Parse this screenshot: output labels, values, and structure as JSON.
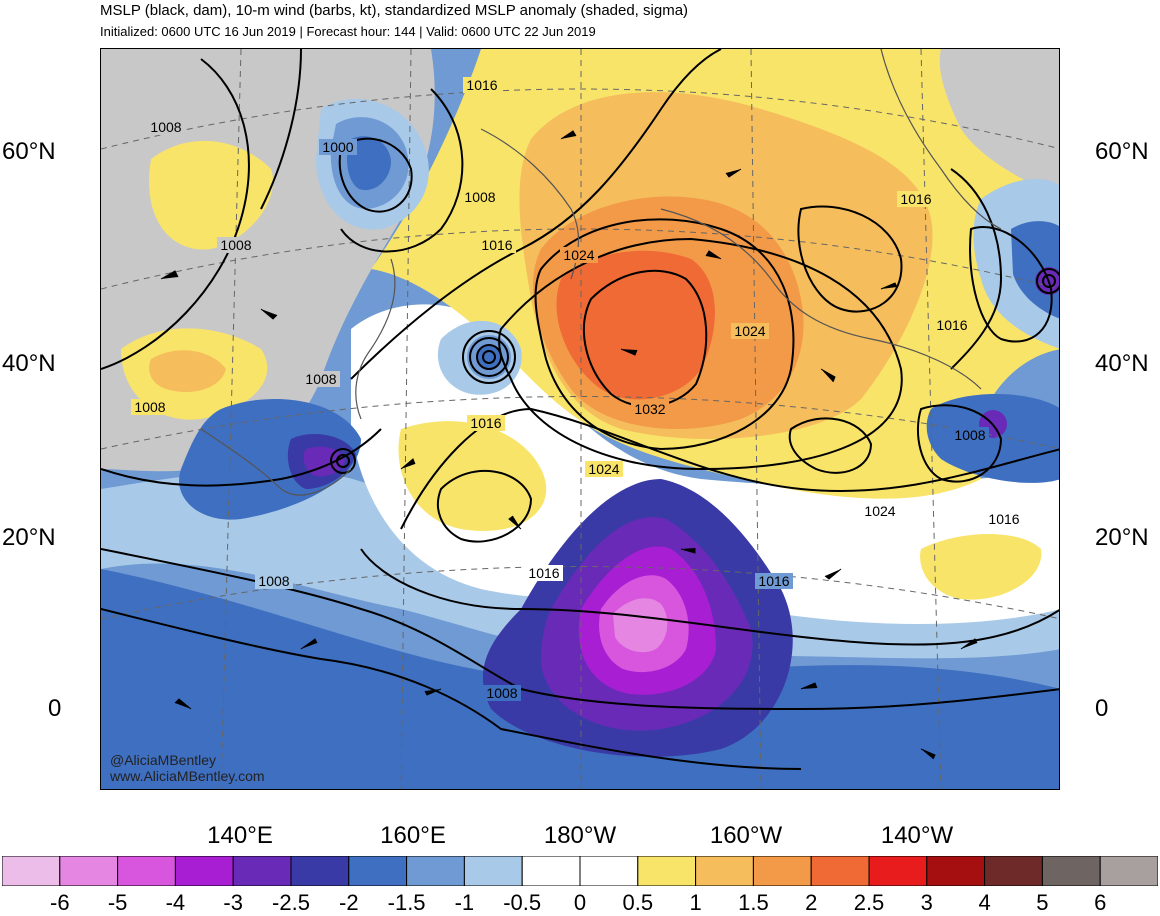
{
  "header": {
    "title": "MSLP (black, dam), 10-m wind (barbs, kt), standardized MSLP anomaly (shaded, sigma)",
    "subtitle": "Initialized: 0600 UTC 16 Jun 2019 | Forecast hour: 144 | Valid: 0600 UTC 22 Jun 2019"
  },
  "axes": {
    "lat_labels": [
      "60°N",
      "40°N",
      "20°N",
      "0"
    ],
    "lon_labels": [
      "140°E",
      "160°E",
      "180°W",
      "160°W",
      "140°W"
    ]
  },
  "isobar_labels": [
    "1016",
    "1008",
    "1000",
    "1008",
    "1016",
    "1024",
    "1032",
    "1024",
    "1016",
    "1008",
    "1008",
    "1016",
    "1008",
    "1016",
    "1024",
    "1016",
    "1016",
    "1008",
    "1024",
    "1016"
  ],
  "credit": {
    "line1": "@AliciaMBentley",
    "line2": "www.AliciaMBentley.com"
  },
  "colorbar": {
    "labels": [
      "-6",
      "-5",
      "-4",
      "-3",
      "-2.5",
      "-2",
      "-1.5",
      "-1",
      "-0.5",
      "0",
      "0.5",
      "1",
      "1.5",
      "2",
      "2.5",
      "3",
      "4",
      "5",
      "6"
    ],
    "colors": [
      "#ebbde8",
      "#e486e2",
      "#d855dd",
      "#a81ed3",
      "#6a2ab8",
      "#3a3aa6",
      "#3f6fc0",
      "#6f9ad3",
      "#a8c9e8",
      "#ffffff",
      "#ffffff",
      "#f9e46a",
      "#f5bd5c",
      "#f29a48",
      "#ef6a34",
      "#e81c1c",
      "#a50f0f",
      "#6e2a28",
      "#6e6562",
      "#a8a09f"
    ]
  },
  "colors": {
    "land_gray": "#c8c8c8",
    "isobar": "#000000",
    "coast": "#555555"
  }
}
